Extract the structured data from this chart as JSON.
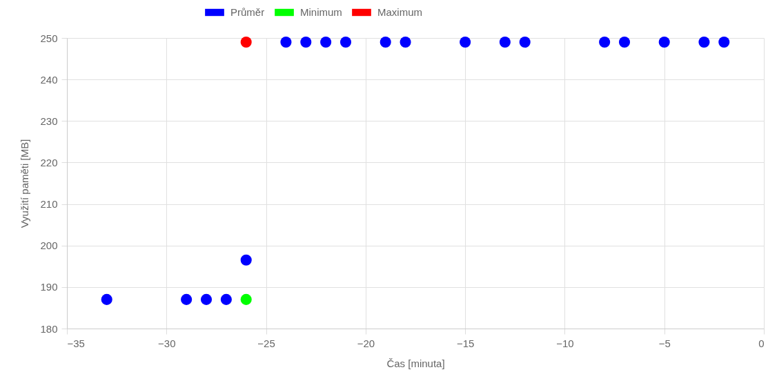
{
  "chart_data": {
    "type": "scatter",
    "xlabel": "Čas [minuta]",
    "ylabel": "Využití paměti [MB]",
    "xlim": [
      -35,
      0
    ],
    "xticks": [
      -35,
      -30,
      -25,
      -20,
      -15,
      -10,
      -5,
      0
    ],
    "ylim": [
      180,
      250
    ],
    "yticks": [
      180,
      190,
      200,
      210,
      220,
      230,
      240,
      250
    ],
    "grid": true,
    "legend": "top",
    "marker": "circle",
    "series": [
      {
        "name": "Průměr",
        "color": "#0000ff",
        "x": [
          -33,
          -29,
          -28,
          -27,
          -26,
          -24,
          -23,
          -22,
          -21,
          -19,
          -18,
          -15,
          -13,
          -12,
          -8,
          -7,
          -5,
          -3,
          -2
        ],
        "values": [
          187,
          187,
          187,
          187,
          196.5,
          249,
          249,
          249,
          249,
          249,
          249,
          249,
          249,
          249,
          249,
          249,
          249,
          249,
          249
        ]
      },
      {
        "name": "Minimum",
        "color": "#00ff00",
        "x": [
          -26
        ],
        "values": [
          187
        ]
      },
      {
        "name": "Maximum",
        "color": "#ff0000",
        "x": [
          -26
        ],
        "values": [
          249
        ]
      }
    ]
  }
}
